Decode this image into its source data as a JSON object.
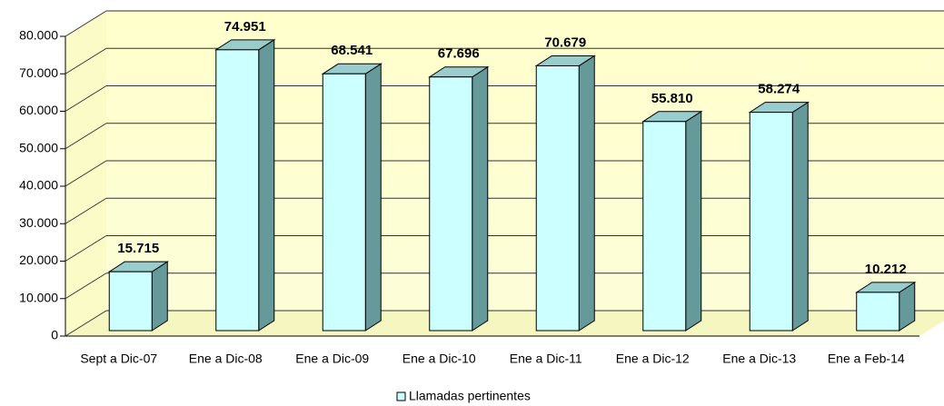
{
  "chart_data": {
    "type": "bar3d",
    "categories": [
      "Sept a Dic-07",
      "Ene a Dic-08",
      "Ene a Dic-09",
      "Ene a Dic-10",
      "Ene a Dic-11",
      "Ene a Dic-12",
      "Ene a Dic-13",
      "Ene a Feb-14"
    ],
    "series": [
      {
        "name": "Llamadas pertinentes",
        "color": "#ccffff",
        "values": [
          15715,
          74951,
          68541,
          67696,
          70679,
          55810,
          58274,
          10212
        ],
        "value_labels": [
          "15.715",
          "74.951",
          "68.541",
          "67.696",
          "70.679",
          "55.810",
          "58.274",
          "10.212"
        ]
      }
    ],
    "ylim": [
      0,
      80000
    ],
    "yticks": [
      0,
      {
        "value": 10000,
        "label": "10.000"
      },
      {
        "value": 20000,
        "label": "20.000"
      },
      {
        "value": 30000,
        "label": "30.000"
      },
      {
        "value": 40000,
        "label": "40.000"
      },
      {
        "value": 50000,
        "label": "50.000"
      },
      {
        "value": 60000,
        "label": "60.000"
      },
      {
        "value": 70000,
        "label": "70.000"
      },
      {
        "value": 80000,
        "label": "80.000"
      }
    ],
    "grid": true,
    "legend": "bottom"
  }
}
